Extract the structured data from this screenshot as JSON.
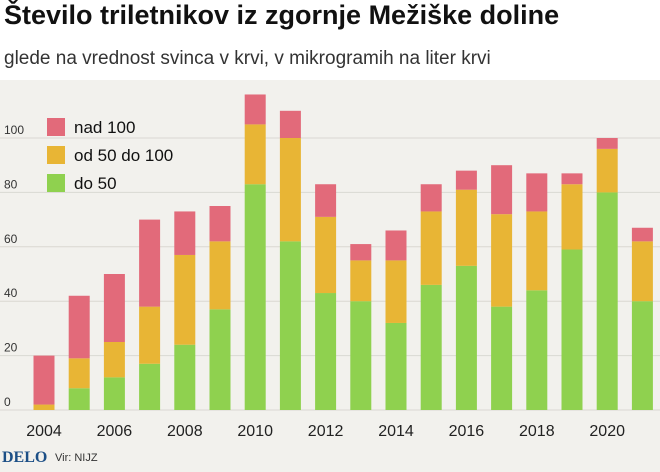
{
  "title": "Število triletnikov iz zgornje Mežiške doline",
  "subtitle": "glede na vrednost svinca v krvi, v mikrogramih na liter krvi",
  "brand": "DELO",
  "source": "Vir: NIJZ",
  "colors": {
    "do_50": "#8fd14f",
    "od_50_do_100": "#e8b535",
    "nad_100": "#e26a7a"
  },
  "chart_data": {
    "type": "bar",
    "stacked": true,
    "x": [
      2004,
      2005,
      2006,
      2007,
      2008,
      2009,
      2010,
      2011,
      2012,
      2013,
      2014,
      2015,
      2016,
      2017,
      2018,
      2019,
      2020,
      2021
    ],
    "xticks": [
      "2004",
      "2006",
      "2008",
      "2010",
      "2012",
      "2014",
      "2016",
      "2018",
      "2020"
    ],
    "yticks": [
      "0",
      "20",
      "40",
      "60",
      "80",
      "100"
    ],
    "ylim": [
      0,
      118
    ],
    "grid": true,
    "legend_position": "top-left",
    "series": [
      {
        "name": "do 50",
        "color": "#8fd14f",
        "values": [
          0,
          8,
          12,
          17,
          24,
          37,
          83,
          62,
          43,
          40,
          32,
          46,
          53,
          38,
          44,
          59,
          80,
          40
        ]
      },
      {
        "name": "od 50 do 100",
        "color": "#e8b535",
        "values": [
          2,
          11,
          13,
          21,
          33,
          25,
          22,
          38,
          28,
          15,
          23,
          27,
          28,
          34,
          29,
          24,
          16,
          22
        ]
      },
      {
        "name": "nad 100",
        "color": "#e26a7a",
        "values": [
          18,
          23,
          25,
          32,
          16,
          13,
          11,
          10,
          12,
          6,
          11,
          10,
          7,
          18,
          14,
          4,
          4,
          5
        ]
      }
    ],
    "legend_order": [
      "nad 100",
      "od 50 do 100",
      "do 50"
    ]
  }
}
